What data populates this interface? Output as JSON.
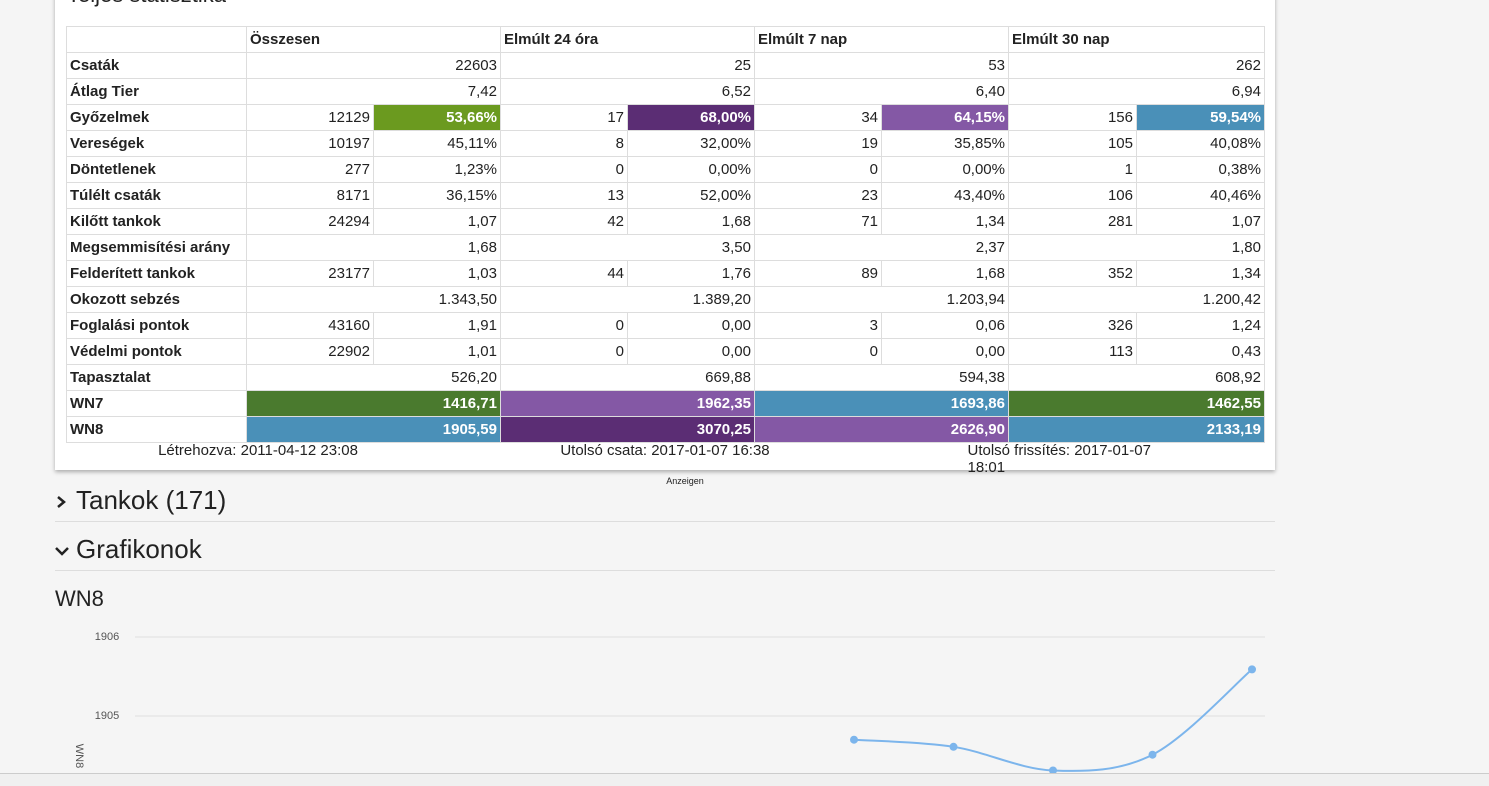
{
  "card": {
    "title": "Teljes statisztika",
    "table": {
      "header": [
        "Összesen",
        "Elmúlt 24 óra",
        "Elmúlt 7 nap",
        "Elmúlt 30 nap"
      ],
      "rows": [
        {
          "label": "Csaták",
          "cells": [
            [
              "22603"
            ],
            [
              "25"
            ],
            [
              "53"
            ],
            [
              "262"
            ]
          ]
        },
        {
          "label": "Átlag Tier",
          "cells": [
            [
              "7,42"
            ],
            [
              "6,52"
            ],
            [
              "6,40"
            ],
            [
              "6,94"
            ]
          ]
        },
        {
          "label": "Győzelmek",
          "cells": [
            [
              "12129",
              "53,66%"
            ],
            [
              "17",
              "68,00%"
            ],
            [
              "34",
              "64,15%"
            ],
            [
              "156",
              "59,54%"
            ]
          ],
          "highlight": [
            "#6b9a1f",
            "#5b2d74",
            "#8458a5",
            "#4a90b8"
          ]
        },
        {
          "label": "Vereségek",
          "cells": [
            [
              "10197",
              "45,11%"
            ],
            [
              "8",
              "32,00%"
            ],
            [
              "19",
              "35,85%"
            ],
            [
              "105",
              "40,08%"
            ]
          ]
        },
        {
          "label": "Döntetlenek",
          "cells": [
            [
              "277",
              "1,23%"
            ],
            [
              "0",
              "0,00%"
            ],
            [
              "0",
              "0,00%"
            ],
            [
              "1",
              "0,38%"
            ]
          ]
        },
        {
          "label": "Túlélt csaták",
          "cells": [
            [
              "8171",
              "36,15%"
            ],
            [
              "13",
              "52,00%"
            ],
            [
              "23",
              "43,40%"
            ],
            [
              "106",
              "40,46%"
            ]
          ]
        },
        {
          "label": "Kilőtt tankok",
          "cells": [
            [
              "24294",
              "1,07"
            ],
            [
              "42",
              "1,68"
            ],
            [
              "71",
              "1,34"
            ],
            [
              "281",
              "1,07"
            ]
          ]
        },
        {
          "label": "Megsemmisítési arány",
          "cells": [
            [
              "1,68"
            ],
            [
              "3,50"
            ],
            [
              "2,37"
            ],
            [
              "1,80"
            ]
          ]
        },
        {
          "label": "Felderített tankok",
          "cells": [
            [
              "23177",
              "1,03"
            ],
            [
              "44",
              "1,76"
            ],
            [
              "89",
              "1,68"
            ],
            [
              "352",
              "1,34"
            ]
          ]
        },
        {
          "label": "Okozott sebzés",
          "cells": [
            [
              "1.343,50"
            ],
            [
              "1.389,20"
            ],
            [
              "1.203,94"
            ],
            [
              "1.200,42"
            ]
          ]
        },
        {
          "label": "Foglalási pontok",
          "cells": [
            [
              "43160",
              "1,91"
            ],
            [
              "0",
              "0,00"
            ],
            [
              "3",
              "0,06"
            ],
            [
              "326",
              "1,24"
            ]
          ]
        },
        {
          "label": "Védelmi pontok",
          "cells": [
            [
              "22902",
              "1,01"
            ],
            [
              "0",
              "0,00"
            ],
            [
              "0",
              "0,00"
            ],
            [
              "113",
              "0,43"
            ]
          ]
        },
        {
          "label": "Tapasztalat",
          "cells": [
            [
              "526,20"
            ],
            [
              "669,88"
            ],
            [
              "594,38"
            ],
            [
              "608,92"
            ]
          ]
        },
        {
          "label": "WN7",
          "cells": [
            [
              "1416,71"
            ],
            [
              "1962,35"
            ],
            [
              "1693,86"
            ],
            [
              "1462,55"
            ]
          ],
          "highlight": [
            "#4a7a2e",
            "#8458a5",
            "#4a90b8",
            "#4a7a2e"
          ]
        },
        {
          "label": "WN8",
          "cells": [
            [
              "1905,59"
            ],
            [
              "3070,25"
            ],
            [
              "2626,90"
            ],
            [
              "2133,19"
            ]
          ],
          "highlight": [
            "#4a90b8",
            "#5b2d74",
            "#8458a5",
            "#4a90b8"
          ]
        }
      ]
    },
    "footer": [
      "Létrehozva: 2011-04-12 23:08",
      "Utolsó csata: 2017-01-07 16:38",
      "Utolsó frissítés: 2017-01-07 18:01"
    ]
  },
  "ad_label": "Anzeigen",
  "sections": [
    {
      "title": "Tankok (171)",
      "open": false
    },
    {
      "title": "Grafikonok",
      "open": true
    }
  ],
  "chart_heading": "WN8",
  "chart_data": {
    "type": "line",
    "y_label": "WN8",
    "categories": [
      null,
      null,
      null,
      null,
      null
    ],
    "series": [
      {
        "name": "WN8",
        "color": "#7cb5ec",
        "values": [
          1904.7,
          1904.61,
          1904.31,
          1904.51,
          1905.59
        ]
      }
    ],
    "ylim": [
      1904,
      1906
    ],
    "yticks": [
      1905,
      1906
    ],
    "grid": true
  }
}
